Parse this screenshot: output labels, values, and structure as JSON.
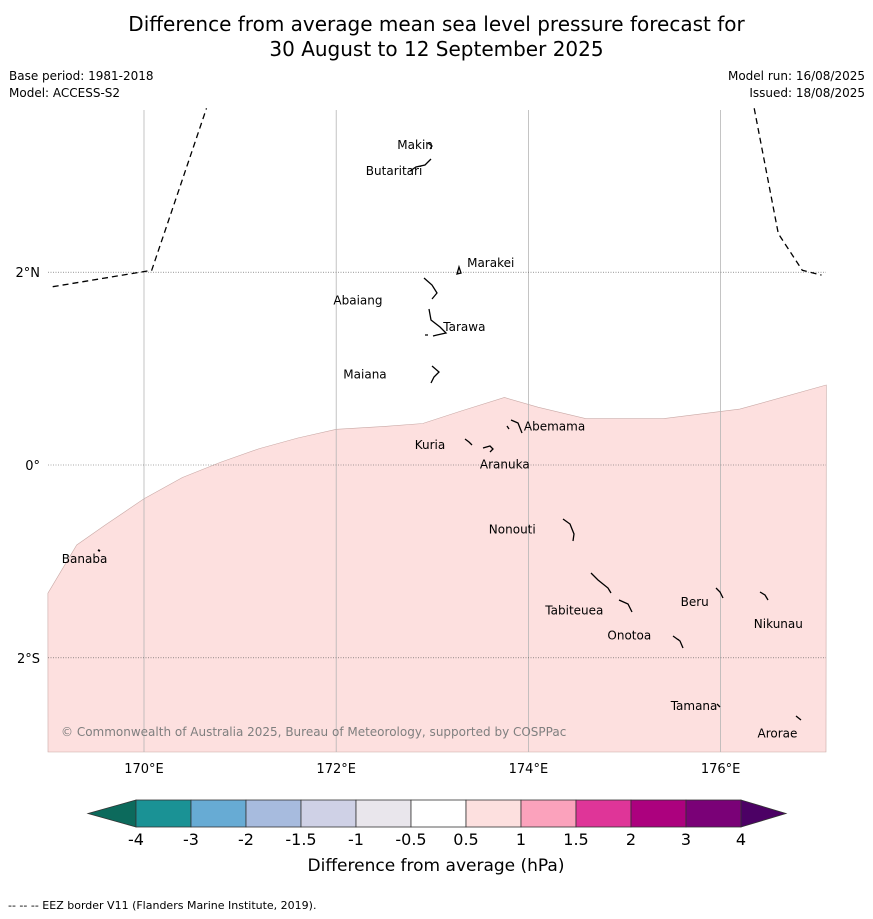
{
  "header": {
    "title_line1": "Difference from average mean sea level pressure forecast for",
    "title_line2": "30 August to 12 September 2025",
    "base_period": "Base period: 1981-2018",
    "model": "Model: ACCESS-S2",
    "model_run": "Model run: 16/08/2025",
    "issued": "Issued: 18/08/2025"
  },
  "map": {
    "lon_range": [
      169.0,
      177.1
    ],
    "lat_range": [
      -3.0,
      3.7
    ],
    "longitude_ticks": [
      {
        "value": 170,
        "label": "170°E"
      },
      {
        "value": 172,
        "label": "172°E"
      },
      {
        "value": 174,
        "label": "174°E"
      },
      {
        "value": 176,
        "label": "176°E"
      }
    ],
    "latitude_ticks": [
      {
        "value": 2,
        "label": "2°N"
      },
      {
        "value": 0,
        "label": "0°"
      },
      {
        "value": -2,
        "label": "2°S"
      }
    ],
    "anomaly_fill": {
      "category": "0.5 to 1",
      "color": "#fde0df",
      "northern_edge": [
        [
          169.0,
          -1.33
        ],
        [
          169.3,
          -0.83
        ],
        [
          169.6,
          -0.62
        ],
        [
          170.0,
          -0.35
        ],
        [
          170.4,
          -0.13
        ],
        [
          170.8,
          0.03
        ],
        [
          171.2,
          0.17
        ],
        [
          171.6,
          0.28
        ],
        [
          172.0,
          0.37
        ],
        [
          172.5,
          0.4
        ],
        [
          172.9,
          0.43
        ],
        [
          173.3,
          0.56
        ],
        [
          173.75,
          0.7
        ],
        [
          174.1,
          0.6
        ],
        [
          174.6,
          0.48
        ],
        [
          175.4,
          0.48
        ],
        [
          176.2,
          0.58
        ],
        [
          177.1,
          0.83
        ]
      ]
    },
    "eez_lines": [
      [
        [
          169.05,
          1.85
        ],
        [
          170.08,
          2.02
        ],
        [
          170.65,
          3.7
        ]
      ],
      [
        [
          176.35,
          3.7
        ],
        [
          176.6,
          2.4
        ],
        [
          176.85,
          2.02
        ],
        [
          177.05,
          1.97
        ]
      ]
    ],
    "places": [
      {
        "name": "Makin",
        "lon": 173.0,
        "lat": 3.33
      },
      {
        "name": "Butaritari",
        "lon": 172.88,
        "lat": 3.1
      },
      {
        "name": "Marakei",
        "lon": 173.3,
        "lat": 2.0
      },
      {
        "name": "Abaiang",
        "lon": 172.98,
        "lat": 1.8
      },
      {
        "name": "Tarawa",
        "lon": 173.0,
        "lat": 1.4
      },
      {
        "name": "Maiana",
        "lon": 173.0,
        "lat": 0.93
      },
      {
        "name": "Abemama",
        "lon": 173.87,
        "lat": 0.39
      },
      {
        "name": "Kuria",
        "lon": 173.4,
        "lat": 0.23
      },
      {
        "name": "Aranuka",
        "lon": 173.62,
        "lat": 0.16
      },
      {
        "name": "Nonouti",
        "lon": 174.4,
        "lat": -0.68
      },
      {
        "name": "Banaba",
        "lon": 169.55,
        "lat": -0.87
      },
      {
        "name": "Tabiteuea",
        "lon": 174.8,
        "lat": -1.3
      },
      {
        "name": "Beru",
        "lon": 176.0,
        "lat": -1.33
      },
      {
        "name": "Nikunau",
        "lon": 176.45,
        "lat": -1.36
      },
      {
        "name": "Onotoa",
        "lon": 175.55,
        "lat": -1.8
      },
      {
        "name": "Tamana",
        "lon": 175.98,
        "lat": -2.5
      },
      {
        "name": "Arorae",
        "lon": 176.8,
        "lat": -2.65
      }
    ],
    "copyright": "© Commonwealth of Australia 2025, Bureau of Meteorology, supported by COSPPac"
  },
  "colorbar": {
    "label": "Difference from average (hPa)",
    "tick_labels": [
      "-4",
      "-3",
      "-2",
      "-1.5",
      "-1",
      "-0.5",
      "0.5",
      "1",
      "1.5",
      "2",
      "3",
      "4"
    ],
    "colors": [
      "#1a9295",
      "#67abd4",
      "#a7bbde",
      "#cfd1e6",
      "#e9e6ec",
      "#ffffff",
      "#fde0df",
      "#fba2bc",
      "#df3598",
      "#ac017e",
      "#7a0177"
    ],
    "extend_low_color": "#0c6a5c",
    "extend_high_color": "#4c0165"
  },
  "footer": {
    "legend_text": "--  --  -- EEZ border V11 (Flanders Marine Institute, 2019)."
  }
}
